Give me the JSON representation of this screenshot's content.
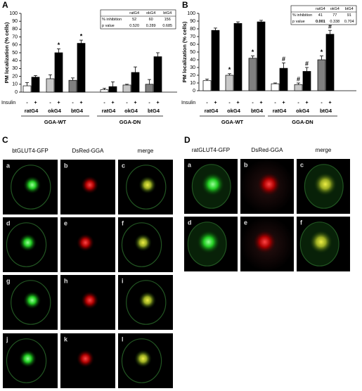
{
  "chart_data": [
    {
      "type": "bar",
      "panel_label": "A",
      "y_label": "PM localization (% cells)",
      "ylim": [
        0,
        100
      ],
      "yticks": [
        0,
        10,
        20,
        30,
        40,
        50,
        60,
        70,
        80,
        90,
        100
      ],
      "x_row_label": "Insulin",
      "categories": [
        "-",
        "+",
        "-",
        "+",
        "-",
        "+",
        "-",
        "+",
        "-",
        "+",
        "-",
        "+"
      ],
      "values": [
        8,
        19,
        17,
        50,
        15,
        62,
        3,
        7,
        9,
        25,
        10,
        45
      ],
      "errors": [
        4,
        2,
        5,
        5,
        3,
        4,
        2,
        6,
        1,
        7,
        6,
        5
      ],
      "colors": [
        "#ffffff",
        "#000000",
        "#c8c8c8",
        "#000000",
        "#808080",
        "#000000",
        "#ffffff",
        "#000000",
        "#c8c8c8",
        "#000000",
        "#808080",
        "#000000"
      ],
      "markers": [
        null,
        null,
        null,
        "*",
        null,
        "*",
        null,
        null,
        null,
        null,
        null,
        null
      ],
      "group_labels": [
        "ratG4",
        "okG4",
        "btG4",
        "ratG4",
        "okG4",
        "btG4"
      ],
      "super_groups": [
        "GGA-WT",
        "GGA-DN"
      ],
      "table": {
        "columns": [
          "ratG4",
          "okG4",
          "btG4"
        ],
        "rows": [
          {
            "label": "% inhibition",
            "cells": [
              "52",
              "60",
              "156"
            ],
            "bold": [
              false,
              false,
              false
            ]
          },
          {
            "label": "p value",
            "cells": [
              "0.520",
              "0.289",
              "0.685"
            ],
            "bold": [
              false,
              false,
              false
            ]
          }
        ]
      }
    },
    {
      "type": "bar",
      "panel_label": "B",
      "y_label": "PM localization (% cells)",
      "ylim": [
        0,
        100
      ],
      "yticks": [
        0,
        10,
        20,
        30,
        40,
        50,
        60,
        70,
        80,
        90,
        100
      ],
      "x_row_label": "Insulin",
      "categories": [
        "-",
        "+",
        "-",
        "+",
        "-",
        "+",
        "-",
        "+",
        "-",
        "+",
        "-",
        "+"
      ],
      "values": [
        13,
        78,
        20,
        87,
        42,
        89,
        9,
        29,
        8,
        25,
        40,
        73
      ],
      "errors": [
        2,
        3,
        2,
        2,
        3,
        2,
        1,
        7,
        2,
        5,
        5,
        5
      ],
      "colors": [
        "#ffffff",
        "#000000",
        "#c8c8c8",
        "#000000",
        "#808080",
        "#000000",
        "#ffffff",
        "#000000",
        "#c8c8c8",
        "#000000",
        "#808080",
        "#000000"
      ],
      "markers": [
        null,
        null,
        "*",
        null,
        "*",
        null,
        null,
        "#",
        "#",
        "#",
        "*",
        "#"
      ],
      "group_labels": [
        "ratG4",
        "okG4",
        "btG4",
        "ratG4",
        "okG4",
        "btG4"
      ],
      "super_groups": [
        "GGA-WT",
        "GGA-DN"
      ],
      "table": {
        "columns": [
          "ratG4",
          "okG4",
          "btG4"
        ],
        "rows": [
          {
            "label": "% inhibition",
            "cells": [
              "41",
              "77",
              "91"
            ],
            "bold": [
              false,
              false,
              false
            ]
          },
          {
            "label": "p value",
            "cells": [
              "0.001",
              "0.338",
              "0.704"
            ],
            "bold": [
              true,
              false,
              false
            ]
          }
        ]
      }
    }
  ],
  "microscopy": [
    {
      "panel_label": "C",
      "columns": [
        "btGLUT4-GFP",
        "DsRed-GGA",
        "merge"
      ],
      "panels": [
        "a",
        "b",
        "c",
        "d",
        "e",
        "f",
        "g",
        "h",
        "i",
        "j",
        "k",
        "l"
      ]
    },
    {
      "panel_label": "D",
      "columns": [
        "ratGLUT4-GFP",
        "DsRed-GGA",
        "merge"
      ],
      "panels": [
        "a",
        "b",
        "c",
        "d",
        "e",
        "f"
      ]
    }
  ]
}
